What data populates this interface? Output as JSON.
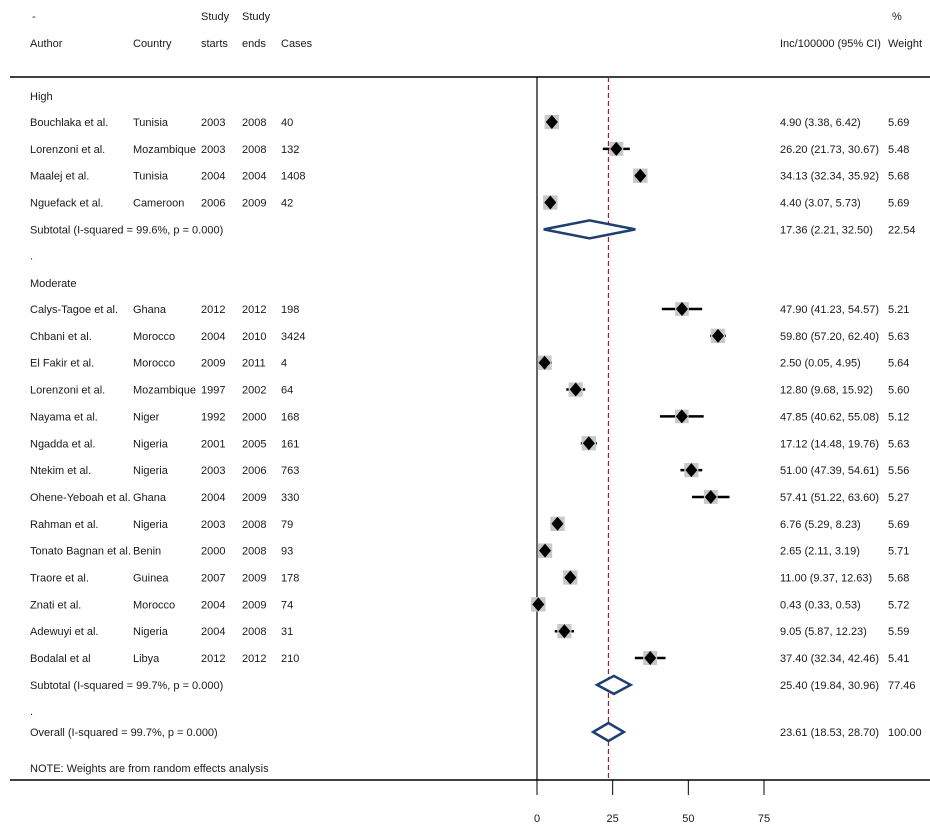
{
  "chart_data": {
    "type": "forest",
    "corner_mark": "-",
    "header": {
      "author": "Author",
      "country": "Country",
      "study_starts": [
        "Study",
        "starts"
      ],
      "study_ends": [
        "Study",
        "ends"
      ],
      "cases": "Cases",
      "estimate": "Inc/100000 (95% CI)",
      "weight": [
        "%",
        "Weight"
      ]
    },
    "groups": [
      {
        "name": "High",
        "studies": [
          {
            "author": "Bouchlaka et al.",
            "country": "Tunisia",
            "start": "2003",
            "end": "2008",
            "cases": "40",
            "est": 4.9,
            "lo": 3.38,
            "hi": 6.42,
            "label": "4.90 (3.38, 6.42)",
            "weight": "5.69"
          },
          {
            "author": "Lorenzoni et al.",
            "country": "Mozambique",
            "start": "2003",
            "end": "2008",
            "cases": "132",
            "est": 26.2,
            "lo": 21.73,
            "hi": 30.67,
            "label": "26.20 (21.73, 30.67)",
            "weight": "5.48"
          },
          {
            "author": "Maalej et al.",
            "country": "Tunisia",
            "start": "2004",
            "end": "2004",
            "cases": "1408",
            "est": 34.13,
            "lo": 32.34,
            "hi": 35.92,
            "label": "34.13 (32.34, 35.92)",
            "weight": "5.68"
          },
          {
            "author": "Nguefack et al.",
            "country": "Cameroon",
            "start": "2006",
            "end": "2009",
            "cases": "42",
            "est": 4.4,
            "lo": 3.07,
            "hi": 5.73,
            "label": "4.40 (3.07, 5.73)",
            "weight": "5.69"
          }
        ],
        "subtotal": {
          "text": "Subtotal  (I-squared = 99.6%, p = 0.000)",
          "est": 17.36,
          "lo": 2.21,
          "hi": 32.5,
          "label": "17.36 (2.21, 32.50)",
          "weight": "22.54"
        }
      },
      {
        "name": "Moderate",
        "studies": [
          {
            "author": "Calys-Tagoe et al.",
            "country": "Ghana",
            "start": "2012",
            "end": "2012",
            "cases": "198",
            "est": 47.9,
            "lo": 41.23,
            "hi": 54.57,
            "label": "47.90 (41.23, 54.57)",
            "weight": "5.21"
          },
          {
            "author": "Chbani et al.",
            "country": "Morocco",
            "start": "2004",
            "end": "2010",
            "cases": "3424",
            "est": 59.8,
            "lo": 57.2,
            "hi": 62.4,
            "label": "59.80 (57.20, 62.40)",
            "weight": "5.63"
          },
          {
            "author": "El Fakir et al.",
            "country": "Morocco",
            "start": "2009",
            "end": "2011",
            "cases": "4",
            "est": 2.5,
            "lo": 0.05,
            "hi": 4.95,
            "label": "2.50 (0.05, 4.95)",
            "weight": "5.64"
          },
          {
            "author": "Lorenzoni et al.",
            "country": "Mozambique",
            "start": "1997",
            "end": "2002",
            "cases": "64",
            "est": 12.8,
            "lo": 9.68,
            "hi": 15.92,
            "label": "12.80 (9.68, 15.92)",
            "weight": "5.60"
          },
          {
            "author": "Nayama et al.",
            "country": "Niger",
            "start": "1992",
            "end": "2000",
            "cases": "168",
            "est": 47.85,
            "lo": 40.62,
            "hi": 55.08,
            "label": "47.85 (40.62, 55.08)",
            "weight": "5.12"
          },
          {
            "author": "Ngadda et al.",
            "country": "Nigeria",
            "start": "2001",
            "end": "2005",
            "cases": "161",
            "est": 17.12,
            "lo": 14.48,
            "hi": 19.76,
            "label": "17.12 (14.48, 19.76)",
            "weight": "5.63"
          },
          {
            "author": "Ntekim et al.",
            "country": "Nigeria",
            "start": "2003",
            "end": "2006",
            "cases": "763",
            "est": 51.0,
            "lo": 47.39,
            "hi": 54.61,
            "label": "51.00 (47.39, 54.61)",
            "weight": "5.56"
          },
          {
            "author": "Ohene-Yeboah et al.",
            "country": "Ghana",
            "start": "2004",
            "end": "2009",
            "cases": "330",
            "est": 57.41,
            "lo": 51.22,
            "hi": 63.6,
            "label": "57.41 (51.22, 63.60)",
            "weight": "5.27"
          },
          {
            "author": "Rahman et al.",
            "country": "Nigeria",
            "start": "2003",
            "end": "2008",
            "cases": "79",
            "est": 6.76,
            "lo": 5.29,
            "hi": 8.23,
            "label": "6.76 (5.29, 8.23)",
            "weight": "5.69"
          },
          {
            "author": "Tonato Bagnan et al.",
            "country": "Benin",
            "start": "2000",
            "end": "2008",
            "cases": "93",
            "est": 2.65,
            "lo": 2.11,
            "hi": 3.19,
            "label": "2.65 (2.11, 3.19)",
            "weight": "5.71"
          },
          {
            "author": "Traore et al.",
            "country": "Guinea",
            "start": "2007",
            "end": "2009",
            "cases": "178",
            "est": 11.0,
            "lo": 9.37,
            "hi": 12.63,
            "label": "11.00 (9.37, 12.63)",
            "weight": "5.68"
          },
          {
            "author": "Znati et al.",
            "country": "Morocco",
            "start": "2004",
            "end": "2009",
            "cases": "74",
            "est": 0.43,
            "lo": 0.33,
            "hi": 0.53,
            "label": "0.43 (0.33, 0.53)",
            "weight": "5.72"
          },
          {
            "author": "Adewuyi et al.",
            "country": "Nigeria",
            "start": "2004",
            "end": "2008",
            "cases": "31",
            "est": 9.05,
            "lo": 5.87,
            "hi": 12.23,
            "label": "9.05 (5.87, 12.23)",
            "weight": "5.59"
          },
          {
            "author": "Bodalal et al",
            "country": "Libya",
            "start": "2012",
            "end": "2012",
            "cases": "210",
            "est": 37.4,
            "lo": 32.34,
            "hi": 42.46,
            "label": "37.40 (32.34, 42.46)",
            "weight": "5.41"
          }
        ],
        "subtotal": {
          "text": "Subtotal  (I-squared = 99.7%, p = 0.000)",
          "est": 25.4,
          "lo": 19.84,
          "hi": 30.96,
          "label": "25.40 (19.84, 30.96)",
          "weight": "77.46"
        }
      }
    ],
    "separator": ".",
    "overall": {
      "text": "Overall  (I-squared = 99.7%, p = 0.000)",
      "est": 23.61,
      "lo": 18.53,
      "hi": 28.7,
      "label": "23.61 (18.53, 28.70)",
      "weight": "100.00"
    },
    "note": "NOTE: Weights are from random effects analysis",
    "x_ticks": [
      0,
      25,
      50,
      75
    ],
    "xlim": [
      0,
      75
    ],
    "null_line": 0,
    "colors": {
      "ci": "#000000",
      "marker_box": "#c8c8c8",
      "diamond": "#1f3f73",
      "overall_line": "#9e1b32"
    }
  }
}
